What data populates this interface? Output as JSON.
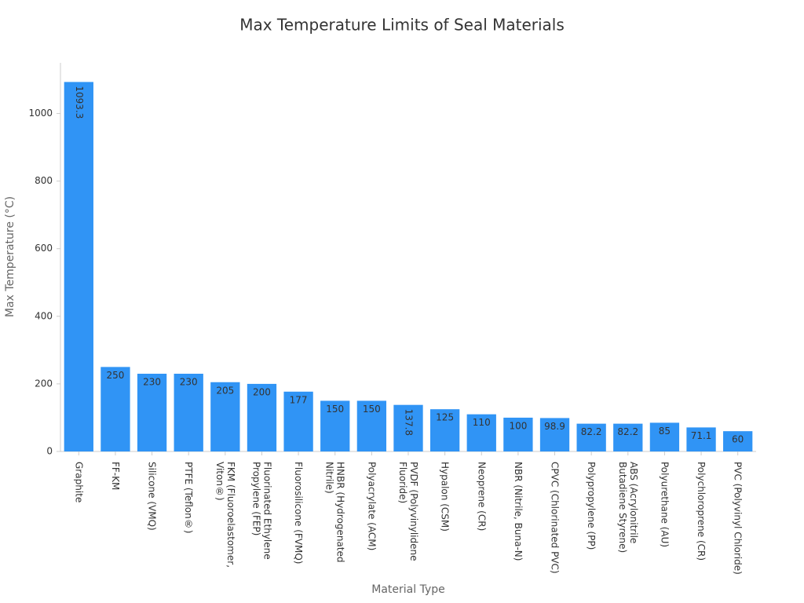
{
  "chart_data": {
    "type": "bar",
    "title": "Max Temperature Limits of Seal Materials",
    "x_label": "Material Type",
    "y_label": "Max Temperature (°C)",
    "categories": [
      "Graphite",
      "FF-KM",
      "Silicone (VMQ)",
      "PTFE (Teflon®)",
      "FKM (Fluoroelastomer, Viton®)",
      "Fluorinated Ethylene Propylene (FEP)",
      "Fluorosilicone (FVMQ)",
      "HNBR (Hydrogenated Nitrile)",
      "Polyacrylate (ACM)",
      "PVDF (Polyvinylidene Fluoride)",
      "Hypalon (CSM)",
      "Neoprene (CR)",
      "NBR (Nitrile, Buna-N)",
      "CPVC (Chlorinated PVC)",
      "Polypropylene (PP)",
      "ABS (Acrylonitrile Butadiene Styrene)",
      "Polyurethane (AU)",
      "Polychloroprene (CR)",
      "PVC (Polyvinyl Chloride)"
    ],
    "values": [
      1093.3,
      250,
      230,
      230,
      205,
      200,
      177,
      150,
      150,
      137.8,
      125,
      110,
      100,
      98.9,
      82.2,
      82.2,
      85,
      71.1,
      60
    ],
    "color": "#3094f5",
    "ylim": [
      0,
      1150
    ],
    "yticks": [
      0,
      200,
      400,
      600,
      800,
      1000
    ]
  }
}
